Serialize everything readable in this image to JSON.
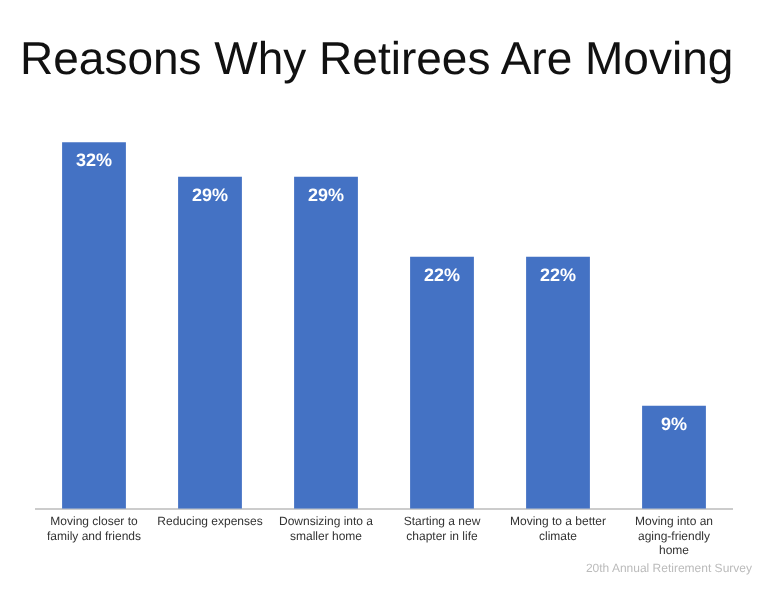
{
  "chart_data": {
    "type": "bar",
    "title": "Reasons Why Retirees Are Moving",
    "categories": [
      "Moving closer to family and friends",
      "Reducing expenses",
      "Downsizing into a smaller home",
      "Starting a new chapter in life",
      "Moving to a better climate",
      "Moving into an aging-friendly home"
    ],
    "values": [
      32,
      29,
      29,
      22,
      22,
      9
    ],
    "color": "#4472c4",
    "value_labels": [
      "32%",
      "29%",
      "29%",
      "22%",
      "22%",
      "9%"
    ],
    "grid": false,
    "legend": false,
    "annotations": [
      "20th Annual Retirement Survey"
    ]
  }
}
